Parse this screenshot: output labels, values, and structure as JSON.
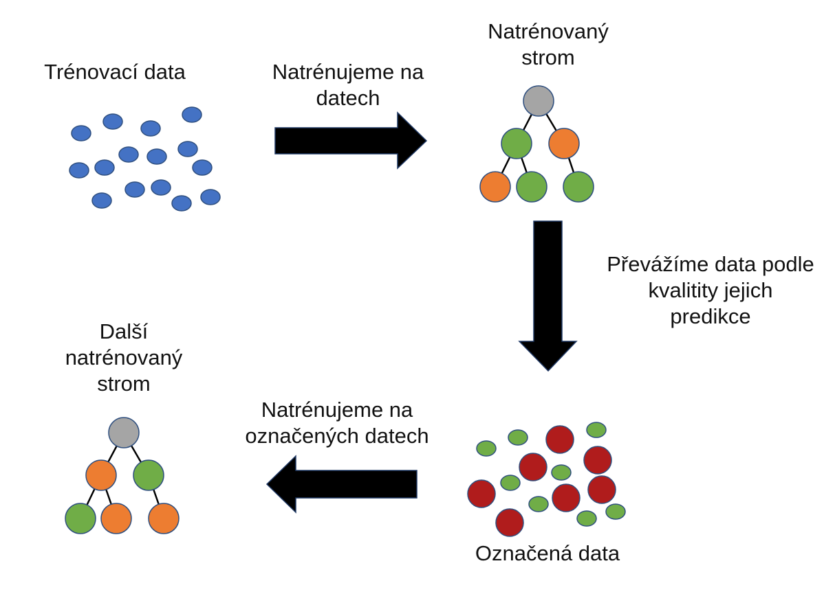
{
  "labels": {
    "training_data": "Trénovací data",
    "train_on_data": [
      "Natrénujeme na",
      "datech"
    ],
    "trained_tree": [
      "Natrénovaný",
      "strom"
    ],
    "reweight_data": [
      "Převážíme data podle",
      "kvalitity jejich",
      "predikce"
    ],
    "next_tree": [
      "Další",
      "natrénovaný",
      "strom"
    ],
    "train_on_labeled": [
      "Natrénujeme na",
      "označených datech"
    ],
    "labeled_data": "Označená data"
  },
  "colors": {
    "data_point": "#4472c4",
    "node_root": "#a5a5a5",
    "node_green": "#70ad47",
    "node_orange": "#ed7d31",
    "node_red": "#b01c1c",
    "node_stroke": "#2f4f7f",
    "arrow": "#000000"
  },
  "trees": {
    "first": [
      "gray",
      "green",
      "orange",
      "orange",
      "green",
      "green"
    ],
    "next": [
      "gray",
      "orange",
      "green",
      "green",
      "orange",
      "orange"
    ]
  }
}
